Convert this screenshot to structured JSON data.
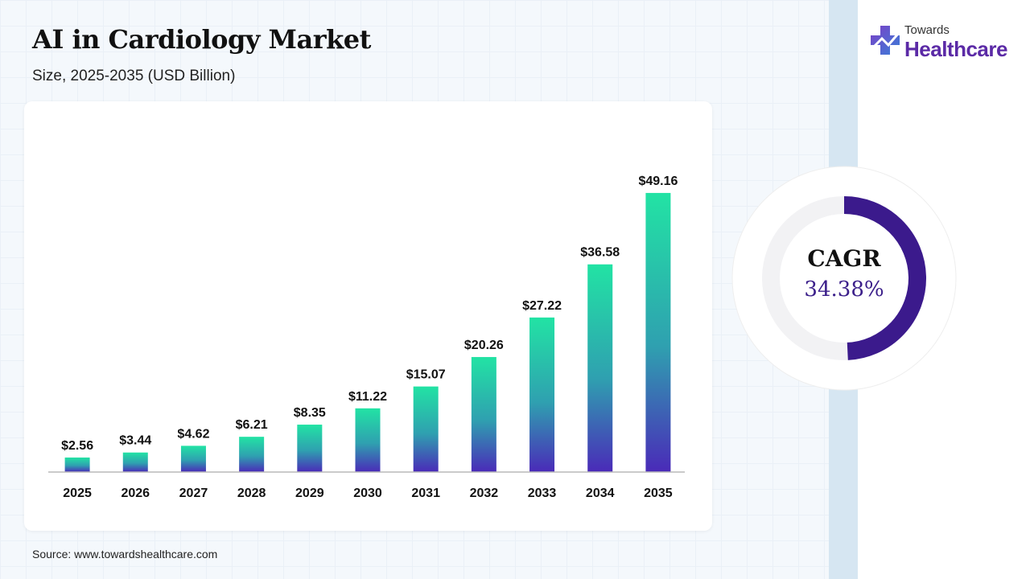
{
  "header": {
    "title": "AI in Cardiology Market",
    "subtitle": "Size, 2025-2035 (USD Billion)"
  },
  "logo": {
    "line1": "Towards",
    "line2": "Healthcare"
  },
  "cagr": {
    "label": "CAGR",
    "value": "34.38%",
    "fraction": 0.5
  },
  "source": "Source: www.towardshealthcare.com",
  "colors": {
    "bar_top": "#22e3a4",
    "bar_bottom": "#4a2ab8",
    "cagr_ring": "#3b1a8c",
    "cagr_track": "#f2f2f4",
    "logo_accent": "#5b2aa6"
  },
  "chart_data": {
    "type": "bar",
    "categories": [
      "2025",
      "2026",
      "2027",
      "2028",
      "2029",
      "2030",
      "2031",
      "2032",
      "2033",
      "2034",
      "2035"
    ],
    "values": [
      2.56,
      3.44,
      4.62,
      6.21,
      8.35,
      11.22,
      15.07,
      20.26,
      27.22,
      36.58,
      49.16
    ],
    "labels": [
      "$2.56",
      "$3.44",
      "$4.62",
      "$6.21",
      "$8.35",
      "$11.22",
      "$15.07",
      "$20.26",
      "$27.22",
      "$36.58",
      "$49.16"
    ],
    "ylim": [
      0,
      50
    ],
    "grid": false,
    "legend": "none"
  }
}
